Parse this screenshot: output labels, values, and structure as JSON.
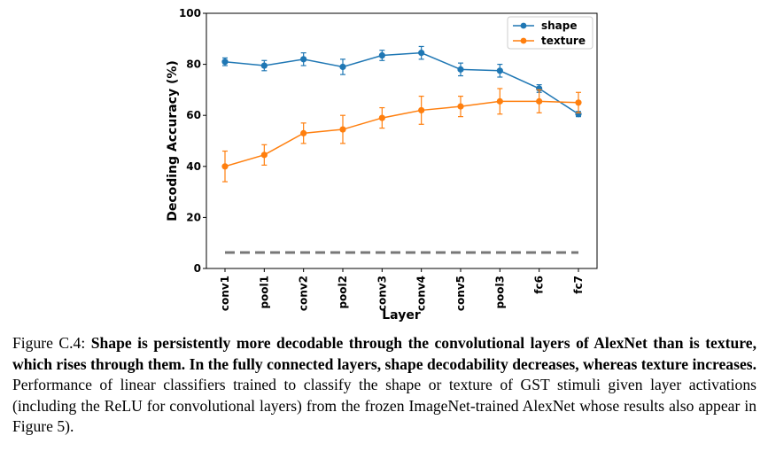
{
  "chart_data": {
    "type": "line",
    "categories": [
      "conv1",
      "pool1",
      "conv2",
      "pool2",
      "conv3",
      "conv4",
      "conv5",
      "pool3",
      "fc6",
      "fc7"
    ],
    "series": [
      {
        "name": "shape",
        "color": "#1f77b4",
        "values": [
          81.0,
          79.5,
          82.0,
          79.0,
          83.5,
          84.5,
          78.0,
          77.5,
          70.5,
          60.5
        ],
        "errors": [
          1.5,
          2.0,
          2.5,
          3.0,
          2.0,
          2.5,
          2.5,
          2.5,
          1.5,
          1.0
        ]
      },
      {
        "name": "texture",
        "color": "#ff7f0e",
        "values": [
          40.0,
          44.5,
          53.0,
          54.5,
          59.0,
          62.0,
          63.5,
          65.5,
          65.5,
          65.0
        ],
        "errors": [
          6.0,
          4.0,
          4.0,
          5.5,
          4.0,
          5.5,
          4.0,
          5.0,
          4.5,
          4.0
        ]
      }
    ],
    "chance_line": {
      "value": 6.25,
      "color": "#777777"
    },
    "xlabel": "Layer",
    "ylabel": "Decoding Accuracy (%)",
    "ylim": [
      0,
      100
    ],
    "yticks": [
      "0",
      "20",
      "40",
      "60",
      "80",
      "100"
    ],
    "legend": "top-right",
    "grid": false
  },
  "caption": {
    "label": "Figure C.4:",
    "bold_text": "Shape is persistently more decodable through the convolutional layers of AlexNet than is texture, which rises through them.  In the fully connected layers, shape decodability decreases, whereas texture increases.",
    "body_text": "Performance of linear classifiers trained to classify the shape or texture of GST stimuli given layer activations (including the ReLU for convolutional layers) from the frozen ImageNet-trained AlexNet whose results also appear in Figure 5)."
  }
}
